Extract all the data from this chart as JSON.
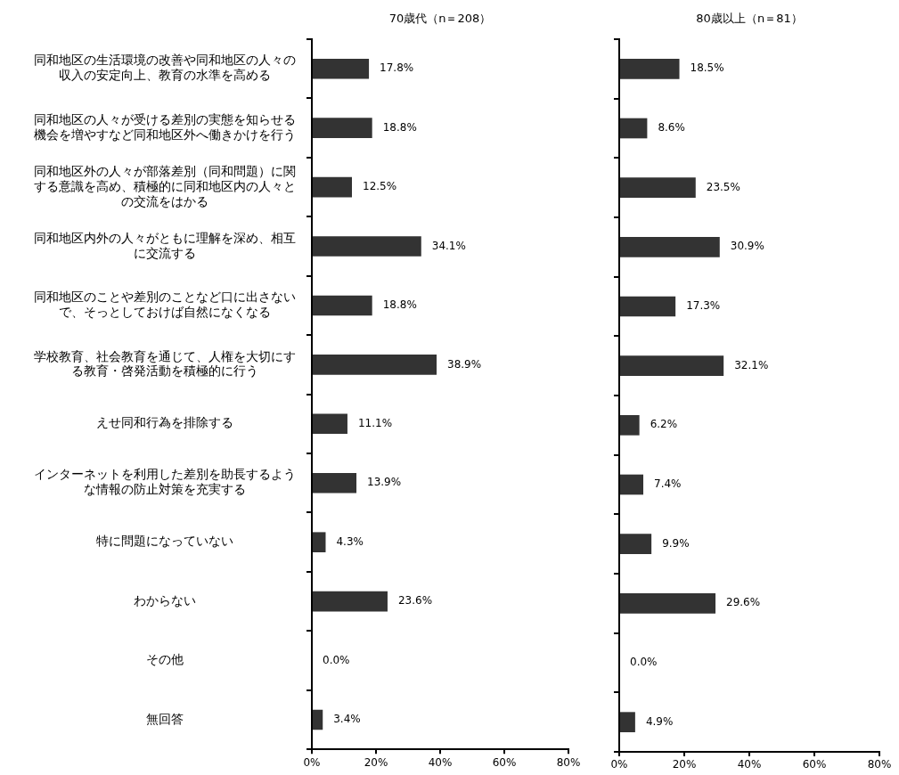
{
  "chart_data": [
    {
      "type": "bar",
      "orientation": "horizontal",
      "title": "70歳代（n＝208）",
      "categories": [
        "同和地区の生活環境の改善や同和地区の人々の収入の安定向上、教育の水準を高める",
        "同和地区の人々が受ける差別の実態を知らせる機会を増やすなど同和地区外へ働きかけを行う",
        "同和地区外の人々が部落差別（同和問題）に関する意識を高め、積極的に同和地区内の人々との交流をはかる",
        "同和地区内外の人々がともに理解を深め、相互に交流する",
        "同和地区のことや差別のことなど口に出さないで、そっとしておけば自然になくなる",
        "学校教育、社会教育を通じて、人権を大切にする教育・啓発活動を積極的に行う",
        "えせ同和行為を排除する",
        "インターネットを利用した差別を助長するような情報の防止対策を充実する",
        "特に問題になっていない",
        "わからない",
        "その他",
        "無回答"
      ],
      "values": [
        17.8,
        18.8,
        12.5,
        34.1,
        18.8,
        38.9,
        11.1,
        13.9,
        4.3,
        23.6,
        0.0,
        3.4
      ],
      "value_labels": [
        "17.8%",
        "18.8%",
        "12.5%",
        "34.1%",
        "18.8%",
        "38.9%",
        "11.1%",
        "13.9%",
        "4.3%",
        "23.6%",
        "0.0%",
        "3.4%"
      ],
      "color": "#333333",
      "xlim": [
        0,
        80
      ],
      "xticks": [
        {
          "value": 0,
          "label": "0%"
        },
        {
          "value": 20,
          "label": "20%"
        },
        {
          "value": 40,
          "label": "40%"
        },
        {
          "value": 60,
          "label": "60%"
        },
        {
          "value": 80,
          "label": "80%"
        }
      ],
      "grid": false
    },
    {
      "type": "bar",
      "orientation": "horizontal",
      "title": "80歳以上（n＝81）",
      "values": [
        18.5,
        8.6,
        23.5,
        30.9,
        17.3,
        32.1,
        6.2,
        7.4,
        9.9,
        29.6,
        0.0,
        4.9
      ],
      "value_labels": [
        "18.5%",
        "8.6%",
        "23.5%",
        "30.9%",
        "17.3%",
        "32.1%",
        "6.2%",
        "7.4%",
        "9.9%",
        "29.6%",
        "0.0%",
        "4.9%"
      ],
      "color": "#333333",
      "xlim": [
        0,
        80
      ],
      "xticks": [
        {
          "value": 0,
          "label": "0%"
        },
        {
          "value": 20,
          "label": "20%"
        },
        {
          "value": 40,
          "label": "40%"
        },
        {
          "value": 60,
          "label": "60%"
        },
        {
          "value": 80,
          "label": "80%"
        }
      ],
      "grid": false,
      "tick_labels": "x"
    }
  ]
}
